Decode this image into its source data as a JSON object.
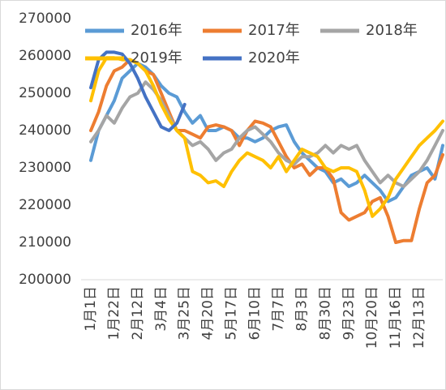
{
  "chart_data": {
    "type": "line",
    "categories": [
      "1月1日",
      null,
      null,
      "1月22日",
      null,
      null,
      "2月12日",
      null,
      null,
      "3月4日",
      null,
      null,
      "3月25日",
      null,
      null,
      "4月20日",
      null,
      null,
      "5月17日",
      null,
      null,
      "6月10日",
      null,
      null,
      "7月7日",
      null,
      null,
      "8月3日",
      null,
      null,
      "8月30日",
      null,
      null,
      "9月23日",
      null,
      null,
      "10月20日",
      null,
      null,
      "11月16日",
      null,
      null,
      "12月13日",
      null,
      null,
      null
    ],
    "series": [
      {
        "name": "2016年",
        "color": "#5b9bd5",
        "values": [
          232000,
          240000,
          244000,
          248000,
          254000,
          256000,
          258000,
          257000,
          255000,
          252000,
          250000,
          249000,
          245000,
          242000,
          244000,
          240000,
          240000,
          241000,
          240000,
          238000,
          238000,
          237000,
          238000,
          240000,
          241000,
          241500,
          237000,
          234000,
          232000,
          230000,
          229000,
          226000,
          227000,
          225000,
          226000,
          228000,
          226000,
          224000,
          221000,
          222000,
          225000,
          228000,
          229000,
          230000,
          227000,
          236000
        ]
      },
      {
        "name": "2017年",
        "color": "#ed7d31",
        "values": [
          240000,
          245000,
          252000,
          256000,
          257000,
          259000,
          258000,
          256000,
          255000,
          250000,
          245000,
          240000,
          240000,
          239000,
          238000,
          241000,
          241500,
          241000,
          240000,
          236000,
          240000,
          242500,
          242000,
          241000,
          237000,
          233000,
          230000,
          231000,
          228000,
          230000,
          230000,
          227000,
          218000,
          216000,
          217000,
          218000,
          221000,
          222000,
          217000,
          210000,
          210500,
          210500,
          219000,
          226000,
          228000,
          233500
        ]
      },
      {
        "name": "2018年",
        "color": "#a5a5a5",
        "values": [
          237000,
          240000,
          244000,
          242000,
          246000,
          249000,
          250000,
          253000,
          251000,
          248000,
          244000,
          240000,
          238000,
          236000,
          237000,
          235000,
          232000,
          234000,
          235000,
          238000,
          240000,
          241000,
          239000,
          237000,
          234000,
          232000,
          231000,
          233000,
          233000,
          234000,
          236000,
          234000,
          236000,
          235000,
          236000,
          232000,
          229000,
          226000,
          228000,
          226000,
          225000,
          227000,
          229000,
          232000,
          236000,
          240000
        ]
      },
      {
        "name": "2019年",
        "color": "#ffc000",
        "values": [
          248000,
          256000,
          259500,
          259500,
          259000,
          259000,
          258000,
          256000,
          252000,
          247000,
          243000,
          240000,
          238000,
          229000,
          228000,
          226000,
          226500,
          225000,
          229000,
          232000,
          234000,
          233000,
          232000,
          230000,
          233000,
          229000,
          232000,
          235000,
          234000,
          233000,
          230000,
          229000,
          230000,
          230000,
          229000,
          224000,
          217000,
          219000,
          222000,
          227000,
          230000,
          233000,
          236000,
          238000,
          240000,
          242500
        ]
      },
      {
        "name": "2020年",
        "color": "#4472c4",
        "values": [
          251500,
          259000,
          261000,
          261000,
          260500,
          258000,
          254000,
          249000,
          245000,
          241000,
          240000,
          242000,
          247000,
          null,
          null,
          null,
          null,
          null,
          null,
          null,
          null,
          null,
          null,
          null,
          null,
          null,
          null,
          null,
          null,
          null,
          null,
          null,
          null,
          null,
          null,
          null,
          null,
          null,
          null,
          null,
          null,
          null,
          null,
          null,
          null,
          null
        ]
      }
    ],
    "ylim": [
      200000,
      270000
    ],
    "yticks": [
      200000,
      210000,
      220000,
      230000,
      240000,
      250000,
      260000,
      270000
    ],
    "legend": "top"
  }
}
